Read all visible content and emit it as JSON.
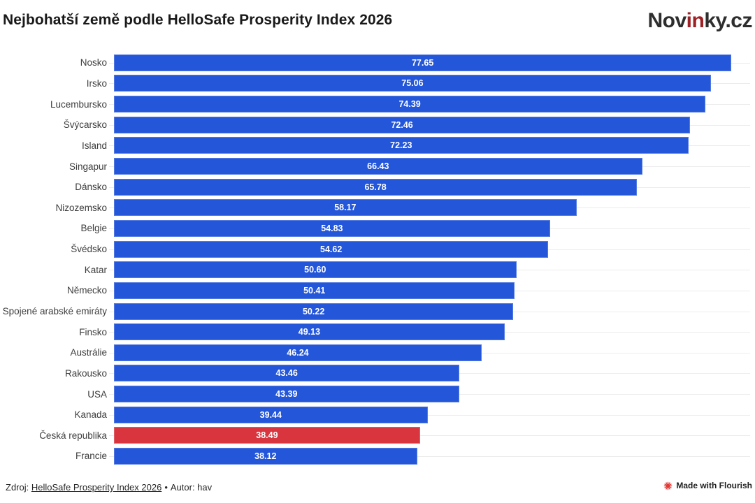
{
  "header": {
    "title": "Nejbohatší země podle HelloSafe Prosperity Index 2026",
    "logo": {
      "prefix": "Nov",
      "accent": "in",
      "suffix": "ky.cz",
      "accent_color": "#9e1f24",
      "text_color": "#2e2e2e"
    }
  },
  "chart_data": {
    "type": "bar",
    "orientation": "horizontal",
    "title": "Nejbohatší země podle HelloSafe Prosperity Index 2026",
    "xlabel": "",
    "ylabel": "",
    "xlim": [
      0,
      80
    ],
    "grid": "row-lines",
    "legend": "none",
    "categories": [
      "Nosko",
      "Irsko",
      "Lucembursko",
      "Švýcarsko",
      "Island",
      "Singapur",
      "Dánsko",
      "Nizozemsko",
      "Belgie",
      "Švédsko",
      "Katar",
      "Německo",
      "Spojené arabské emiráty",
      "Finsko",
      "Austrálie",
      "Rakousko",
      "USA",
      "Kanada",
      "Česká republika",
      "Francie"
    ],
    "values": [
      77.65,
      75.06,
      74.39,
      72.46,
      72.23,
      66.43,
      65.78,
      58.17,
      54.83,
      54.62,
      50.6,
      50.41,
      50.22,
      49.13,
      46.24,
      43.46,
      43.39,
      39.44,
      38.49,
      38.12
    ],
    "value_labels": [
      "77.65",
      "75.06",
      "74.39",
      "72.46",
      "72.23",
      "66.43",
      "65.78",
      "58.17",
      "54.83",
      "54.62",
      "50.60",
      "50.41",
      "50.22",
      "49.13",
      "46.24",
      "43.46",
      "43.39",
      "39.44",
      "38.49",
      "38.12"
    ],
    "highlight_index": 18,
    "highlight_category": "Česká republika",
    "bar_color": "#2456d9",
    "highlight_color": "#d8353e",
    "value_label_color": "#ffffff"
  },
  "footer": {
    "source_prefix": "Zdroj:",
    "source_link": "HelloSafe Prosperity Index 2026",
    "separator": "•",
    "author": "Autor: hav",
    "flourish_label": "Made with Flourish",
    "flourish_icon_color": "#e03a36"
  }
}
